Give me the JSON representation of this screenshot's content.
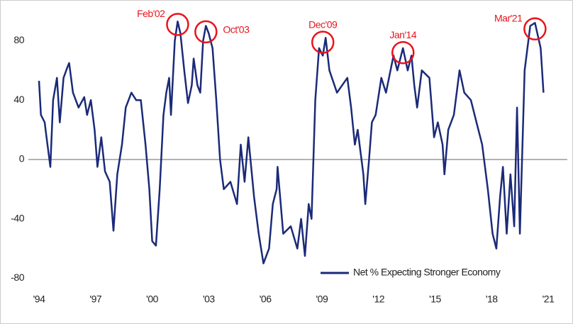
{
  "chart_data": {
    "type": "line",
    "x": [
      1994.0,
      1994.1,
      1994.3,
      1994.4,
      1994.6,
      1994.75,
      1994.95,
      1995.1,
      1995.3,
      1995.5,
      1995.6,
      1995.8,
      1996.1,
      1996.4,
      1996.55,
      1996.75,
      1996.95,
      1997.1,
      1997.3,
      1997.5,
      1997.75,
      1997.95,
      1998.15,
      1998.4,
      1998.6,
      1998.9,
      1999.15,
      1999.4,
      1999.65,
      1999.85,
      2000.0,
      2000.2,
      2000.4,
      2000.6,
      2000.75,
      2000.9,
      2001.0,
      2001.2,
      2001.35,
      2001.5,
      2001.7,
      2001.9,
      2002.1,
      2002.2,
      2002.4,
      2002.55,
      2002.7,
      2002.85,
      2003.0,
      2003.2,
      2003.4,
      2003.6,
      2003.8,
      2004.15,
      2004.5,
      2004.7,
      2004.9,
      2005.1,
      2005.4,
      2005.65,
      2005.9,
      2006.2,
      2006.4,
      2006.6,
      2006.65,
      2006.95,
      2007.35,
      2007.7,
      2007.9,
      2008.1,
      2008.3,
      2008.45,
      2008.65,
      2008.85,
      2009.05,
      2009.2,
      2009.4,
      2009.8,
      2010.35,
      2010.55,
      2010.75,
      2010.9,
      2011.2,
      2011.3,
      2011.5,
      2011.65,
      2011.85,
      2012.15,
      2012.4,
      2012.8,
      2013.0,
      2013.3,
      2013.55,
      2013.75,
      2013.9,
      2014.05,
      2014.3,
      2014.7,
      2014.95,
      2015.15,
      2015.4,
      2015.5,
      2015.7,
      2016.0,
      2016.3,
      2016.55,
      2016.9,
      2017.2,
      2017.5,
      2017.8,
      2018.05,
      2018.25,
      2018.45,
      2018.6,
      2018.8,
      2019.0,
      2019.2,
      2019.35,
      2019.5,
      2019.75,
      2020.05,
      2020.3,
      2020.6,
      2020.75
    ],
    "series": [
      {
        "name": "Net % Expecting Stronger Economy",
        "color": "#1b2a78",
        "values": [
          53,
          30,
          25,
          15,
          -5,
          40,
          55,
          25,
          55,
          62,
          65,
          45,
          35,
          42,
          30,
          40,
          20,
          -5,
          15,
          -8,
          -15,
          -48,
          -10,
          10,
          35,
          45,
          40,
          40,
          10,
          -20,
          -55,
          -58,
          -20,
          30,
          45,
          55,
          30,
          80,
          93,
          85,
          60,
          38,
          50,
          68,
          50,
          45,
          80,
          90,
          85,
          75,
          40,
          0,
          -20,
          -15,
          -30,
          10,
          -15,
          15,
          -25,
          -50,
          -70,
          -60,
          -30,
          -20,
          -5,
          -50,
          -45,
          -60,
          -40,
          -65,
          -30,
          -40,
          40,
          75,
          70,
          82,
          60,
          45,
          55,
          35,
          10,
          20,
          -10,
          -30,
          0,
          25,
          30,
          55,
          45,
          70,
          60,
          75,
          60,
          70,
          50,
          35,
          60,
          55,
          15,
          25,
          10,
          -10,
          20,
          30,
          60,
          45,
          40,
          25,
          10,
          -20,
          -50,
          -60,
          -25,
          -5,
          -50,
          -10,
          -45,
          35,
          -50,
          60,
          90,
          92,
          75,
          45
        ]
      }
    ],
    "xlim": [
      1994,
      2021
    ],
    "ylim": [
      -86,
      100
    ],
    "xticks": [
      {
        "value": 1994,
        "label": "'94"
      },
      {
        "value": 1997,
        "label": "'97"
      },
      {
        "value": 2000,
        "label": "'00"
      },
      {
        "value": 2003,
        "label": "'03"
      },
      {
        "value": 2006,
        "label": "'06"
      },
      {
        "value": 2009,
        "label": "'09"
      },
      {
        "value": 2012,
        "label": "'12"
      },
      {
        "value": 2015,
        "label": "'15"
      },
      {
        "value": 2018,
        "label": "'18"
      },
      {
        "value": 2021,
        "label": "'21"
      }
    ],
    "yticks": [
      -80,
      -40,
      0,
      40,
      80
    ],
    "zero_line": true,
    "legend": "lower right",
    "annotations": [
      {
        "text": "Feb'02",
        "x": 2001.35,
        "y": 91,
        "side": "left",
        "color": "#e8141c"
      },
      {
        "text": "Oct'03",
        "x": 2002.85,
        "y": 86,
        "side": "right",
        "color": "#e8141c"
      },
      {
        "text": "Dec'09",
        "x": 2009.05,
        "y": 79,
        "side": "top",
        "color": "#e8141c"
      },
      {
        "text": "Jan'14",
        "x": 2013.3,
        "y": 72,
        "side": "top",
        "color": "#e8141c"
      },
      {
        "text": "Mar'21",
        "x": 2020.3,
        "y": 88,
        "side": "left",
        "color": "#e8141c"
      }
    ]
  }
}
